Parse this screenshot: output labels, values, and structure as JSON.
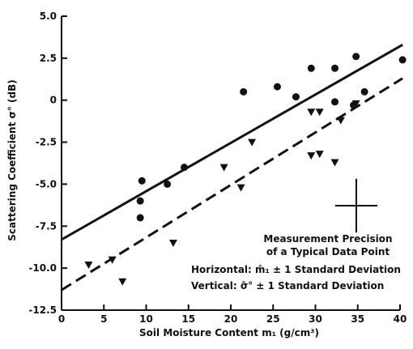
{
  "chart_data": {
    "type": "scatter",
    "xlabel": "Soil Moisture Content m₁ (g/cm³)",
    "ylabel": "Scattering Coefficient σ° (dB)",
    "xlim": [
      0,
      40
    ],
    "ylim": [
      -12.5,
      5.0
    ],
    "x_ticks": [
      0,
      5,
      10,
      15,
      20,
      25,
      30,
      35,
      40
    ],
    "x_tick_labels": [
      "0",
      "5",
      "10",
      "15",
      "20",
      "25",
      "30",
      "35",
      "40"
    ],
    "y_ticks": [
      5.0,
      2.5,
      0,
      -2.5,
      -5.0,
      -7.5,
      -10.0,
      -12.5
    ],
    "y_tick_labels": [
      "5.0",
      "2.5",
      "0",
      "-2.5",
      "-5.0",
      "-7.5",
      "-10.0",
      "-12.5"
    ],
    "grid": false,
    "series": [
      {
        "marker": "circle",
        "points": [
          [
            9.5,
            -4.8
          ],
          [
            9.3,
            -6.0
          ],
          [
            9.3,
            -7.0
          ],
          [
            12.5,
            -5.0
          ],
          [
            14.5,
            -4.0
          ],
          [
            21.5,
            0.5
          ],
          [
            25.5,
            0.8
          ],
          [
            27.7,
            0.2
          ],
          [
            29.5,
            1.9
          ],
          [
            32.3,
            1.9
          ],
          [
            32.3,
            -0.1
          ],
          [
            34.8,
            2.6
          ],
          [
            35.8,
            0.5
          ],
          [
            40.3,
            2.4
          ],
          [
            34.5,
            -0.3
          ]
        ]
      },
      {
        "marker": "triangle-down",
        "points": [
          [
            3.2,
            -9.8
          ],
          [
            6.0,
            -9.5
          ],
          [
            7.2,
            -10.8
          ],
          [
            13.2,
            -8.5
          ],
          [
            19.2,
            -4.0
          ],
          [
            21.2,
            -5.2
          ],
          [
            22.5,
            -2.5
          ],
          [
            29.5,
            -0.7
          ],
          [
            30.5,
            -0.7
          ],
          [
            29.5,
            -3.3
          ],
          [
            30.5,
            -3.2
          ],
          [
            32.3,
            -3.7
          ],
          [
            33.0,
            -1.2
          ],
          [
            34.8,
            -0.2
          ]
        ]
      }
    ],
    "fit_lines": [
      {
        "style": "solid",
        "from": [
          0,
          -8.3
        ],
        "to": [
          40.3,
          3.3
        ]
      },
      {
        "style": "dashed",
        "from": [
          0,
          -11.3
        ],
        "to": [
          40.3,
          1.3
        ]
      }
    ],
    "annotation": {
      "line1": "Measurement Precision",
      "line2": "of a Typical Data Point",
      "line3": "Horizontal:  m̂₁ ± 1 Standard Deviation",
      "line4": "Vertical:  σ̂° ± 1 Standard Deviation",
      "error_bar_x": 2.5,
      "error_bar_y": 1.6
    }
  }
}
